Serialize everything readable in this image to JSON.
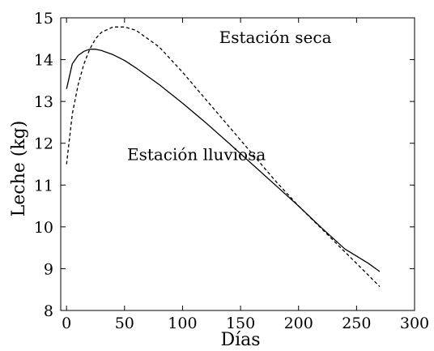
{
  "chart_data": {
    "type": "line",
    "title": "",
    "xlabel": "Días",
    "ylabel": "Leche (kg)",
    "xlim": [
      -5,
      300
    ],
    "ylim": [
      8,
      15
    ],
    "grid": false,
    "legend": "none",
    "xticks": [
      0,
      50,
      100,
      150,
      200,
      250,
      300
    ],
    "yticks": [
      8,
      9,
      10,
      11,
      12,
      13,
      14,
      15
    ],
    "series": [
      {
        "name": "Estación lluviosa",
        "style": "solid",
        "color": "#000000",
        "x": [
          0,
          5,
          10,
          15,
          20,
          25,
          30,
          40,
          50,
          60,
          80,
          100,
          120,
          140,
          160,
          180,
          200,
          220,
          240,
          260,
          270
        ],
        "y": [
          13.3,
          13.9,
          14.1,
          14.2,
          14.25,
          14.25,
          14.22,
          14.12,
          13.98,
          13.8,
          13.4,
          12.96,
          12.49,
          12.0,
          11.5,
          11.0,
          10.5,
          9.97,
          9.47,
          9.13,
          8.93
        ]
      },
      {
        "name": "Estación seca",
        "style": "dashed",
        "color": "#000000",
        "x": [
          0,
          5,
          10,
          15,
          20,
          25,
          30,
          40,
          50,
          60,
          80,
          100,
          120,
          140,
          160,
          180,
          200,
          220,
          240,
          260,
          270
        ],
        "y": [
          11.5,
          12.7,
          13.4,
          13.9,
          14.25,
          14.5,
          14.65,
          14.78,
          14.78,
          14.7,
          14.3,
          13.7,
          13.05,
          12.4,
          11.75,
          11.1,
          10.5,
          9.95,
          9.4,
          8.85,
          8.57
        ]
      }
    ],
    "annotations": [
      {
        "text": "Estación seca",
        "x": 180,
        "y": 14.4
      },
      {
        "text": "Estación lluviosa",
        "x": 112,
        "y": 11.6
      }
    ]
  }
}
